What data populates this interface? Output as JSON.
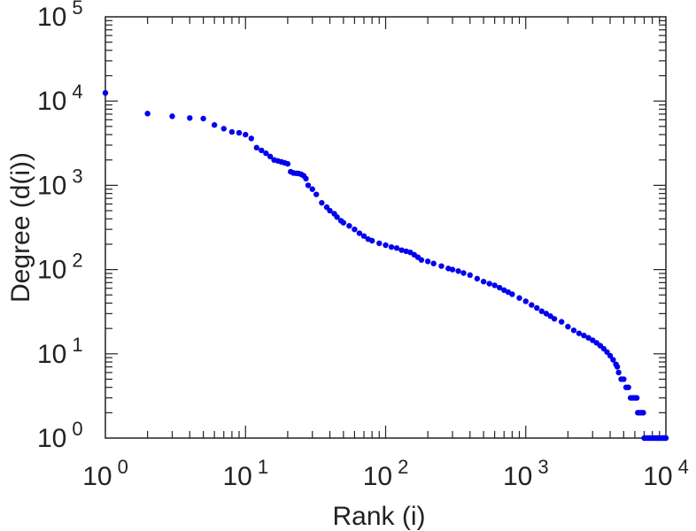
{
  "chart_data": {
    "type": "scatter",
    "title": "",
    "xlabel": "Rank (i)",
    "ylabel": "Degree (d(i))",
    "xscale": "log",
    "yscale": "log",
    "xlim": [
      1,
      10000
    ],
    "ylim": [
      1,
      100000
    ],
    "grid": false,
    "legend": "none",
    "x_ticks": [
      {
        "value": 1,
        "base": "10",
        "exp": "0"
      },
      {
        "value": 10,
        "base": "10",
        "exp": "1"
      },
      {
        "value": 100,
        "base": "10",
        "exp": "2"
      },
      {
        "value": 1000,
        "base": "10",
        "exp": "3"
      },
      {
        "value": 10000,
        "base": "10",
        "exp": "4"
      }
    ],
    "y_ticks": [
      {
        "value": 1,
        "base": "10",
        "exp": "0"
      },
      {
        "value": 10,
        "base": "10",
        "exp": "1"
      },
      {
        "value": 100,
        "base": "10",
        "exp": "2"
      },
      {
        "value": 1000,
        "base": "10",
        "exp": "3"
      },
      {
        "value": 10000,
        "base": "10",
        "exp": "4"
      },
      {
        "value": 100000,
        "base": "10",
        "exp": "5"
      }
    ],
    "series": [
      {
        "color": "#0000ee",
        "points": [
          [
            1,
            12500
          ],
          [
            2,
            7100
          ],
          [
            3,
            6600
          ],
          [
            4,
            6300
          ],
          [
            5,
            6200
          ],
          [
            6,
            5200
          ],
          [
            7,
            4700
          ],
          [
            8,
            4300
          ],
          [
            9,
            4200
          ],
          [
            10,
            4000
          ],
          [
            11,
            3600
          ],
          [
            12,
            2800
          ],
          [
            13,
            2600
          ],
          [
            14,
            2400
          ],
          [
            15,
            2200
          ],
          [
            16,
            2000
          ],
          [
            17,
            1950
          ],
          [
            18,
            1900
          ],
          [
            19,
            1850
          ],
          [
            20,
            1800
          ],
          [
            21,
            1450
          ],
          [
            22,
            1400
          ],
          [
            23,
            1390
          ],
          [
            24,
            1380
          ],
          [
            25,
            1350
          ],
          [
            26,
            1300
          ],
          [
            27,
            1200
          ],
          [
            28,
            1000
          ],
          [
            30,
            900
          ],
          [
            32,
            780
          ],
          [
            35,
            620
          ],
          [
            38,
            550
          ],
          [
            40,
            500
          ],
          [
            43,
            460
          ],
          [
            45,
            420
          ],
          [
            48,
            380
          ],
          [
            50,
            360
          ],
          [
            55,
            330
          ],
          [
            60,
            300
          ],
          [
            65,
            270
          ],
          [
            70,
            250
          ],
          [
            75,
            230
          ],
          [
            80,
            220
          ],
          [
            90,
            205
          ],
          [
            100,
            195
          ],
          [
            110,
            185
          ],
          [
            120,
            180
          ],
          [
            130,
            170
          ],
          [
            140,
            165
          ],
          [
            150,
            160
          ],
          [
            160,
            150
          ],
          [
            170,
            140
          ],
          [
            180,
            130
          ],
          [
            200,
            125
          ],
          [
            220,
            118
          ],
          [
            250,
            110
          ],
          [
            280,
            103
          ],
          [
            300,
            100
          ],
          [
            330,
            96
          ],
          [
            360,
            91
          ],
          [
            400,
            86
          ],
          [
            450,
            78
          ],
          [
            500,
            72
          ],
          [
            550,
            68
          ],
          [
            600,
            65
          ],
          [
            650,
            61
          ],
          [
            700,
            57
          ],
          [
            750,
            54
          ],
          [
            800,
            51
          ],
          [
            900,
            46
          ],
          [
            1000,
            42
          ],
          [
            1100,
            38
          ],
          [
            1200,
            35
          ],
          [
            1300,
            32
          ],
          [
            1400,
            30
          ],
          [
            1500,
            28
          ],
          [
            1600,
            26
          ],
          [
            1800,
            24
          ],
          [
            2000,
            21
          ],
          [
            2200,
            19
          ],
          [
            2400,
            17.5
          ],
          [
            2600,
            16.5
          ],
          [
            2800,
            15.5
          ],
          [
            3000,
            14.5
          ],
          [
            3200,
            13.5
          ],
          [
            3400,
            12.5
          ],
          [
            3600,
            11.5
          ],
          [
            3800,
            10.5
          ],
          [
            4000,
            9.5
          ],
          [
            4200,
            8.5
          ],
          [
            4400,
            7.5
          ],
          [
            4500,
            7
          ],
          [
            4600,
            6
          ],
          [
            4800,
            5
          ],
          [
            5000,
            5
          ],
          [
            5200,
            4
          ],
          [
            5400,
            4
          ],
          [
            5600,
            3
          ],
          [
            5800,
            3
          ],
          [
            6000,
            3
          ],
          [
            6200,
            3
          ],
          [
            6300,
            2
          ],
          [
            6500,
            2
          ],
          [
            6700,
            2
          ],
          [
            6900,
            2
          ],
          [
            7000,
            1
          ],
          [
            7200,
            1
          ],
          [
            7400,
            1
          ],
          [
            7600,
            1
          ],
          [
            7800,
            1
          ],
          [
            8000,
            1
          ],
          [
            8200,
            1
          ],
          [
            8400,
            1
          ],
          [
            8600,
            1
          ],
          [
            8800,
            1
          ],
          [
            9000,
            1
          ],
          [
            9200,
            1
          ],
          [
            9400,
            1
          ],
          [
            9600,
            1
          ],
          [
            9800,
            1
          ],
          [
            10000,
            1
          ]
        ]
      }
    ]
  }
}
